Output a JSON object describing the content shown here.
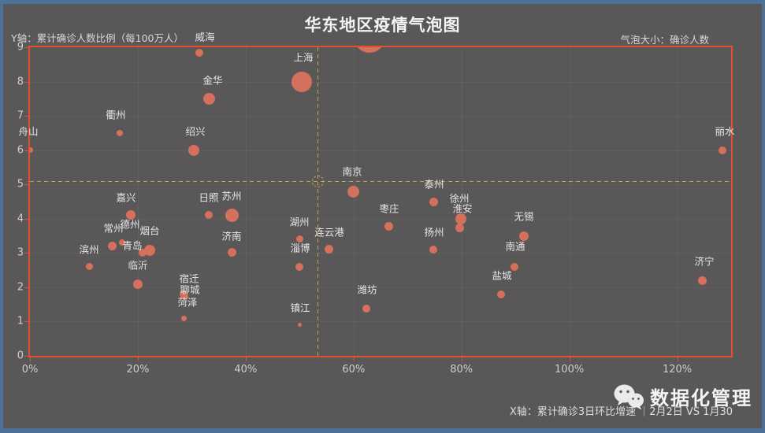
{
  "page": {
    "title": "华东地区疫情气泡图",
    "y_axis_note": "Y轴：累计确诊人数比例（每100万人）",
    "bubble_size_note": "气泡大小：确诊人数",
    "x_axis_note": "X轴：累计确诊3日环比增速 ｜2月2日 VS 1月30",
    "brand": "数据化管理",
    "brand_icon": "wechat-icon"
  },
  "colors": {
    "background": "#595757",
    "frame": "#e1512b",
    "bubble": "#d4705c",
    "reference_dash": "#c2a83e",
    "edge_strip": "#4e7197",
    "grid": "#625f5f",
    "text": "#e6e6e6"
  },
  "chart_data": {
    "type": "scatter",
    "subtype": "bubble",
    "title": "华东地区疫情气泡图",
    "xlabel": "累计确诊3日环比增速（2月2日 VS 1月30）",
    "ylabel": "累计确诊人数比例（每100万人）",
    "size_label": "确诊人数",
    "xlim": [
      0,
      130
    ],
    "ylim": [
      0,
      9
    ],
    "grid": true,
    "x_ticks": [
      {
        "v": 0,
        "label": "0%"
      },
      {
        "v": 20,
        "label": "20%"
      },
      {
        "v": 40,
        "label": "40%"
      },
      {
        "v": 60,
        "label": "60%"
      },
      {
        "v": 80,
        "label": "80%"
      },
      {
        "v": 100,
        "label": "100%"
      },
      {
        "v": 120,
        "label": "120%"
      }
    ],
    "y_ticks": [
      {
        "v": 0,
        "label": "0"
      },
      {
        "v": 1,
        "label": "1"
      },
      {
        "v": 2,
        "label": "2"
      },
      {
        "v": 3,
        "label": "3"
      },
      {
        "v": 4,
        "label": "4"
      },
      {
        "v": 5,
        "label": "5"
      },
      {
        "v": 6,
        "label": "6"
      },
      {
        "v": 7,
        "label": "7"
      },
      {
        "v": 8,
        "label": "8"
      },
      {
        "v": 9,
        "label": "9"
      }
    ],
    "reference_lines": {
      "vertical_x_pct": 53.3,
      "horizontal_y": 5.1
    },
    "series": [
      {
        "city": "舟山",
        "x": 0,
        "y": 6.0,
        "r": 3.5,
        "lp": [
          36,
          166
        ]
      },
      {
        "city": "衢州",
        "x": 16.7,
        "y": 6.5,
        "r": 4,
        "lp": [
          147,
          145
        ]
      },
      {
        "city": "绍兴",
        "x": 30.4,
        "y": 6.0,
        "r": 7,
        "lp": [
          248,
          166
        ]
      },
      {
        "city": "金华",
        "x": 33.3,
        "y": 7.5,
        "r": 7.5,
        "lp": [
          270,
          101
        ]
      },
      {
        "city": "威海",
        "x": 31.4,
        "y": 8.85,
        "r": 5,
        "lp": [
          260,
          46
        ]
      },
      {
        "city": "上海",
        "x": 50.4,
        "y": 8.0,
        "r": 13,
        "lp": [
          385,
          72
        ]
      },
      {
        "city": "",
        "x": 63.0,
        "y": 9.3,
        "r": 20,
        "lp": null
      },
      {
        "city": "丽水",
        "x": 128.4,
        "y": 6.0,
        "r": 5,
        "lp": [
          920,
          166
        ]
      },
      {
        "city": "南京",
        "x": 59.9,
        "y": 4.78,
        "r": 7.5,
        "lp": [
          447,
          217
        ]
      },
      {
        "city": "泰州",
        "x": 74.8,
        "y": 4.48,
        "r": 5.5,
        "lp": [
          551,
          233
        ]
      },
      {
        "city": "徐州",
        "x": 79.9,
        "y": 4.0,
        "r": 7,
        "lp": [
          583,
          251
        ]
      },
      {
        "city": "淮安",
        "x": 79.7,
        "y": 3.72,
        "r": 5.5,
        "lp": [
          587,
          264
        ]
      },
      {
        "city": "枣庄",
        "x": 66.6,
        "y": 3.78,
        "r": 5.5,
        "lp": [
          494,
          264
        ]
      },
      {
        "city": "扬州",
        "x": 74.8,
        "y": 3.1,
        "r": 5,
        "lp": [
          551,
          294
        ]
      },
      {
        "city": "无锡",
        "x": 91.6,
        "y": 3.5,
        "r": 6,
        "lp": [
          665,
          274
        ]
      },
      {
        "city": "南通",
        "x": 89.8,
        "y": 2.6,
        "r": 5,
        "lp": [
          654,
          312
        ]
      },
      {
        "city": "盐城",
        "x": 87.3,
        "y": 1.8,
        "r": 5,
        "lp": [
          637,
          349
        ]
      },
      {
        "city": "济宁",
        "x": 124.7,
        "y": 2.2,
        "r": 5.5,
        "lp": [
          894,
          331
        ]
      },
      {
        "city": "嘉兴",
        "x": 18.7,
        "y": 4.1,
        "r": 6,
        "lp": [
          160,
          250
        ]
      },
      {
        "city": "日照",
        "x": 33.2,
        "y": 4.1,
        "r": 5,
        "lp": [
          265,
          250
        ]
      },
      {
        "city": "苏州",
        "x": 37.4,
        "y": 4.1,
        "r": 8.5,
        "lp": [
          294,
          248
        ]
      },
      {
        "city": "济南",
        "x": 37.5,
        "y": 3.02,
        "r": 5.5,
        "lp": [
          294,
          299
        ]
      },
      {
        "city": "常州",
        "x": 15.3,
        "y": 3.2,
        "r": 5.5,
        "lp": [
          144,
          289
        ]
      },
      {
        "city": "德州",
        "x": 17.1,
        "y": 3.3,
        "r": 4,
        "lp": [
          165,
          284
        ]
      },
      {
        "city": "烟台",
        "x": 22.2,
        "y": 3.08,
        "r": 7,
        "lp": [
          190,
          292
        ]
      },
      {
        "city": "青岛",
        "x": 20.9,
        "y": 3.0,
        "r": 5,
        "lp": [
          168,
          311
        ]
      },
      {
        "city": "滨州",
        "x": 11.1,
        "y": 2.6,
        "r": 4.5,
        "lp": [
          113,
          316
        ]
      },
      {
        "city": "临沂",
        "x": 20.0,
        "y": 2.1,
        "r": 6,
        "lp": [
          175,
          336
        ]
      },
      {
        "city": "湖州",
        "x": 50.0,
        "y": 3.42,
        "r": 4.5,
        "lp": [
          380,
          281
        ]
      },
      {
        "city": "淄博",
        "x": 50.0,
        "y": 2.6,
        "r": 5,
        "lp": [
          381,
          314
        ]
      },
      {
        "city": "连云港",
        "x": 55.4,
        "y": 3.1,
        "r": 5.5,
        "lp": [
          418,
          294
        ]
      },
      {
        "city": "镇江",
        "x": 50.0,
        "y": 0.9,
        "r": 2.5,
        "lp": [
          381,
          390
        ]
      },
      {
        "city": "潍坊",
        "x": 62.4,
        "y": 1.38,
        "r": 5,
        "lp": [
          466,
          367
        ]
      },
      {
        "city": "宿迁",
        "x": 28.5,
        "y": 1.8,
        "r": 5,
        "lp": [
          240,
          353
        ]
      },
      {
        "city": "聊城",
        "x": 28.8,
        "y": 1.72,
        "r": 4,
        "lp": [
          241,
          367
        ]
      },
      {
        "city": "菏泽",
        "x": 28.5,
        "y": 1.08,
        "r": 3.5,
        "lp": [
          238,
          383
        ]
      }
    ]
  }
}
